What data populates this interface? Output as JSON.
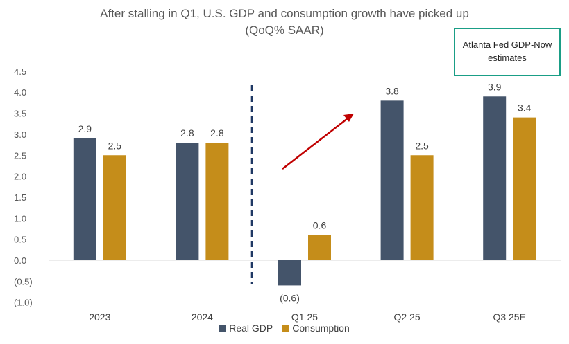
{
  "title": "After stalling in Q1, U.S. GDP and consumption growth have picked up",
  "subtitle": "(QoQ% SAAR)",
  "callout_text": "Atlanta Fed GDP-Now estimates",
  "colors": {
    "real_gdp": "#44546a",
    "consumption": "#c58d1a",
    "arrow": "#c00000",
    "divider": "#1f3864",
    "callout_border": "#1a9e86"
  },
  "chart_data": {
    "type": "bar",
    "categories": [
      "2023",
      "2024",
      "Q1 25",
      "Q2 25",
      "Q3 25E"
    ],
    "series": [
      {
        "name": "Real GDP",
        "values": [
          2.9,
          2.8,
          -0.6,
          3.8,
          3.9
        ],
        "labels": [
          "2.9",
          "2.8",
          "(0.6)",
          "3.8",
          "3.9"
        ]
      },
      {
        "name": "Consumption",
        "values": [
          2.5,
          2.8,
          0.6,
          2.5,
          3.4
        ],
        "labels": [
          "2.5",
          "2.8",
          "0.6",
          "2.5",
          "3.4"
        ]
      }
    ],
    "ylim": [
      -1.0,
      4.5
    ],
    "yticks": [
      "4.5",
      "4.0",
      "3.5",
      "3.0",
      "2.5",
      "2.0",
      "1.5",
      "1.0",
      "0.5",
      "0.0",
      "(0.5)",
      "(1.0)"
    ],
    "ytick_values": [
      4.5,
      4.0,
      3.5,
      3.0,
      2.5,
      2.0,
      1.5,
      1.0,
      0.5,
      0.0,
      -0.5,
      -1.0
    ],
    "grid": false,
    "legend": "bottom"
  }
}
